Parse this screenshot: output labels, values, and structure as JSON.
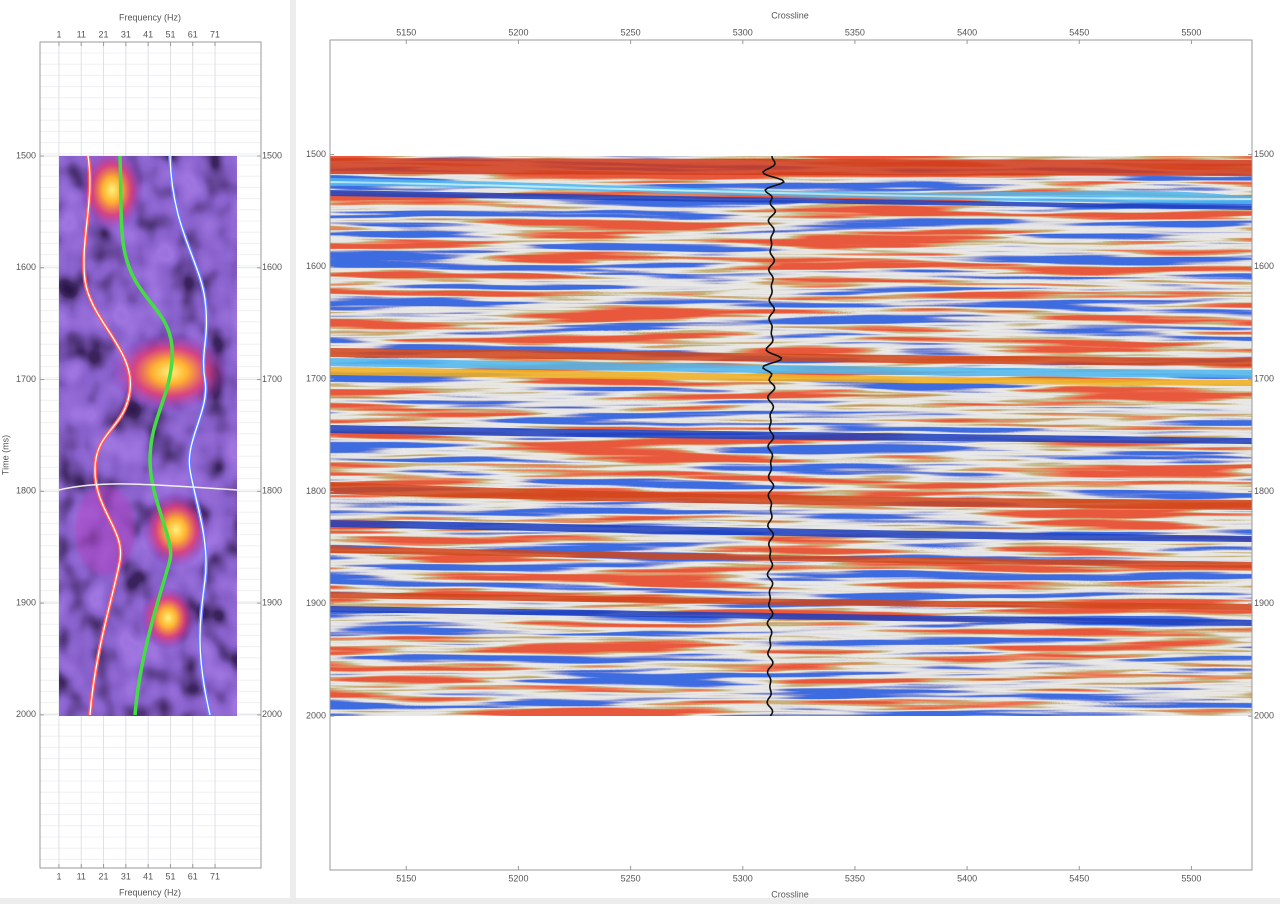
{
  "left_panel": {
    "x_label": "Frequency (Hz)",
    "y_label": "Time (ms)",
    "xlim": [
      -7.5,
      91.6
    ],
    "xticks": [
      1,
      11,
      21,
      31,
      41,
      51,
      61,
      71
    ],
    "ylim": [
      1398,
      2137
    ],
    "yticks": [
      1500,
      1600,
      1700,
      1800,
      1900,
      2000
    ]
  },
  "right_panel": {
    "x_label": "Crossline",
    "xlim": [
      5116,
      5527
    ],
    "xticks": [
      5150,
      5200,
      5250,
      5300,
      5350,
      5400,
      5450,
      5500
    ],
    "ylim": [
      1398,
      2137
    ],
    "yticks": [
      1500,
      1600,
      1700,
      1800,
      1900,
      2000
    ]
  }
}
